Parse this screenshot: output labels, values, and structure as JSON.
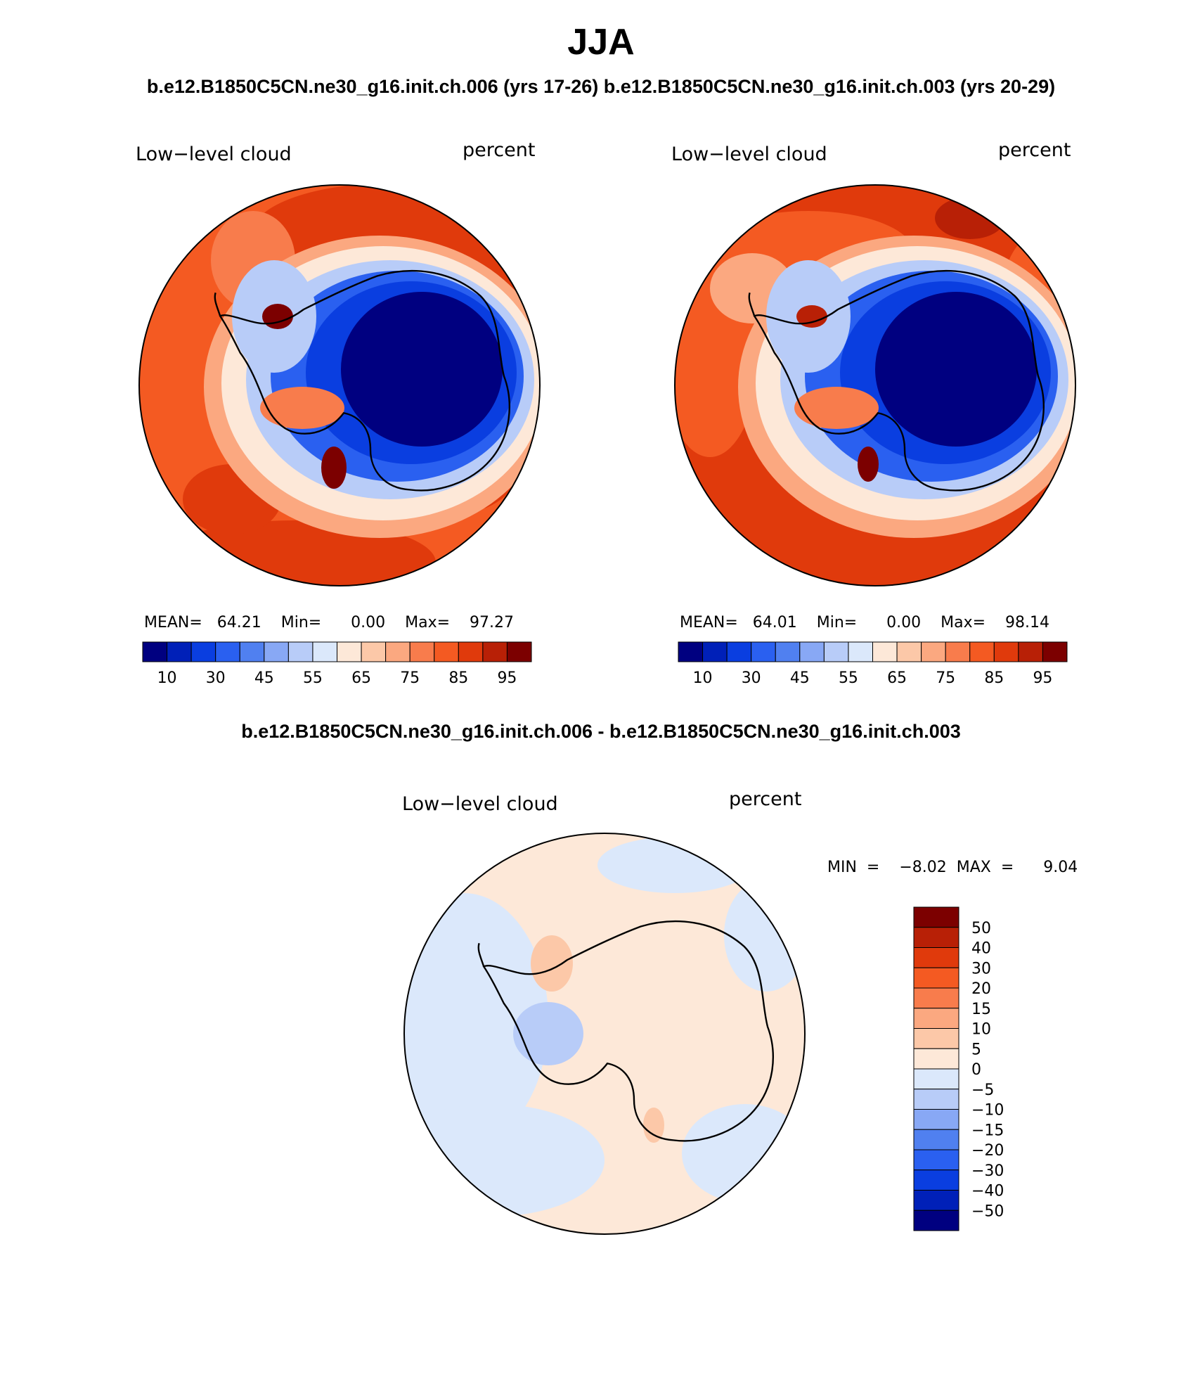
{
  "season": "JJA",
  "case_title": "b.e12.B1850C5CN.ne30_g16.init.ch.006 (yrs 17-26)",
  "control_title": "b.e12.B1850C5CN.ne30_g16.init.ch.003 (yrs 20-29)",
  "diff_title": "b.e12.B1850C5CN.ne30_g16.init.ch.006 - b.e12.B1850C5CN.ne30_g16.init.ch.003",
  "panels": [
    {
      "id": "case",
      "variable": "Low−level cloud",
      "units": "percent",
      "projection": "south-polar stereographic",
      "stats_text": "MEAN=   64.21    Min=      0.00    Max=    97.27",
      "stats": {
        "mean": 64.21,
        "min": 0.0,
        "max": 97.27
      }
    },
    {
      "id": "control",
      "variable": "Low−level cloud",
      "units": "percent",
      "projection": "south-polar stereographic",
      "stats_text": "MEAN=   64.01    Min=      0.00    Max=    98.14",
      "stats": {
        "mean": 64.01,
        "min": 0.0,
        "max": 98.14
      }
    },
    {
      "id": "difference",
      "variable": "Low−level cloud",
      "units": "percent",
      "projection": "south-polar stereographic",
      "stats_text": "MIN  =    −8.02  MAX  =      9.04",
      "stats": {
        "min": -8.02,
        "max": 9.04
      }
    }
  ],
  "colorbar_mean": {
    "orientation": "horizontal",
    "tick_labels": [
      "10",
      "30",
      "45",
      "55",
      "65",
      "75",
      "85",
      "95"
    ],
    "colors": [
      "#000080",
      "#0020b8",
      "#0a3ee0",
      "#2a60f0",
      "#5080f0",
      "#88a8f5",
      "#b8ccf8",
      "#dbe8fb",
      "#fde8d8",
      "#fcc8a8",
      "#fba880",
      "#f87c4c",
      "#f45a22",
      "#e03a0c",
      "#b82006",
      "#7c0000"
    ]
  },
  "colorbar_diff": {
    "orientation": "vertical",
    "tick_labels": [
      "50",
      "40",
      "30",
      "20",
      "15",
      "10",
      "5",
      "0",
      "−5",
      "−10",
      "−15",
      "−20",
      "−30",
      "−40",
      "−50"
    ],
    "colors": [
      "#7c0000",
      "#b82006",
      "#e03a0c",
      "#f45a22",
      "#f87c4c",
      "#fba880",
      "#fcc8a8",
      "#fde8d8",
      "#dbe8fb",
      "#b8ccf8",
      "#88a8f5",
      "#5080f0",
      "#2a60f0",
      "#0a3ee0",
      "#0020b8",
      "#000080"
    ]
  }
}
